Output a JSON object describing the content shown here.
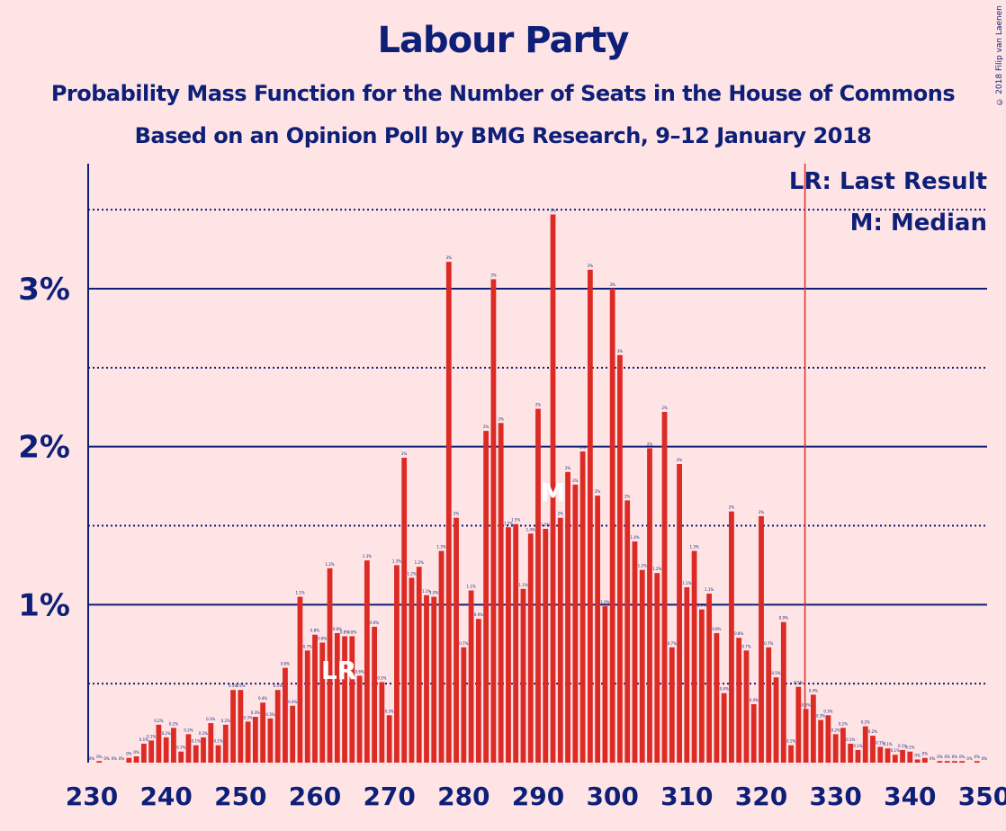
{
  "title": "Labour Party",
  "subtitle1": "Probability Mass Function for the Number of Seats in the House of Commons",
  "subtitle2": "Based on an Opinion Poll by BMG Research, 9–12 January 2018",
  "copyright": "© 2018 Filip van Laenen",
  "legend": {
    "lr": "LR: Last Result",
    "m": "M: Median"
  },
  "colors": {
    "bar": "#dc2b25",
    "axis": "#0e1f78",
    "background": "#ffe4e6",
    "last_result_line": "#dc2b25"
  },
  "chart_data": {
    "type": "bar",
    "xlabel": "",
    "ylabel": "",
    "xlim": [
      230,
      350
    ],
    "ylim": [
      0,
      3.8
    ],
    "x_ticks": [
      230,
      240,
      250,
      260,
      270,
      280,
      290,
      300,
      310,
      320,
      330,
      340,
      350
    ],
    "y_ticks": [
      {
        "value": 1,
        "label": "1%"
      },
      {
        "value": 2,
        "label": "2%"
      },
      {
        "value": 3,
        "label": "3%"
      }
    ],
    "dotted_lines": [
      0.5,
      1.5,
      2.5,
      3.5
    ],
    "last_result": {
      "seat": 262,
      "label": "LR"
    },
    "median": {
      "seat": 292,
      "label": "M"
    },
    "last_result_line": 326,
    "seats": [
      230,
      231,
      232,
      233,
      234,
      235,
      236,
      237,
      238,
      239,
      240,
      241,
      242,
      243,
      244,
      245,
      246,
      247,
      248,
      249,
      250,
      251,
      252,
      253,
      254,
      255,
      256,
      257,
      258,
      259,
      260,
      261,
      262,
      263,
      264,
      265,
      266,
      267,
      268,
      269,
      270,
      271,
      272,
      273,
      274,
      275,
      276,
      277,
      278,
      279,
      280,
      281,
      282,
      283,
      284,
      285,
      286,
      287,
      288,
      289,
      290,
      291,
      292,
      293,
      294,
      295,
      296,
      297,
      298,
      299,
      300,
      301,
      302,
      303,
      304,
      305,
      306,
      307,
      308,
      309,
      310,
      311,
      312,
      313,
      314,
      315,
      316,
      317,
      318,
      319,
      320,
      321,
      322,
      323,
      324,
      325,
      326,
      327,
      328,
      329,
      330,
      331,
      332,
      333,
      334,
      335,
      336,
      337,
      338,
      339,
      340,
      341,
      342,
      343,
      344,
      345,
      346,
      347,
      348,
      349,
      350
    ],
    "values": [
      0.0,
      0.01,
      0.0,
      0.0,
      0.0,
      0.03,
      0.04,
      0.12,
      0.14,
      0.24,
      0.16,
      0.22,
      0.07,
      0.18,
      0.11,
      0.16,
      0.25,
      0.11,
      0.24,
      0.46,
      0.46,
      0.26,
      0.29,
      0.38,
      0.28,
      0.46,
      0.6,
      0.36,
      1.05,
      0.71,
      0.81,
      0.76,
      1.23,
      0.82,
      0.8,
      0.8,
      0.55,
      1.28,
      0.86,
      0.51,
      0.3,
      1.25,
      1.93,
      1.17,
      1.24,
      1.06,
      1.05,
      1.34,
      3.17,
      1.55,
      0.73,
      1.09,
      0.91,
      2.1,
      3.06,
      2.15,
      1.49,
      1.51,
      1.1,
      1.45,
      2.24,
      1.48,
      3.47,
      1.55,
      1.84,
      1.76,
      1.97,
      3.12,
      1.69,
      0.99,
      3.0,
      2.58,
      1.66,
      1.4,
      1.22,
      1.99,
      1.2,
      2.22,
      0.73,
      1.89,
      1.11,
      1.34,
      0.97,
      1.07,
      0.82,
      0.44,
      1.59,
      0.79,
      0.71,
      0.37,
      1.56,
      0.73,
      0.54,
      0.89,
      0.11,
      0.48,
      0.34,
      0.43,
      0.27,
      0.3,
      0.18,
      0.22,
      0.12,
      0.08,
      0.23,
      0.17,
      0.1,
      0.09,
      0.05,
      0.08,
      0.07,
      0.02,
      0.03,
      0.0,
      0.01,
      0.01,
      0.01,
      0.01,
      0.0,
      0.01,
      0.0
    ],
    "labels": [
      "0%",
      "0%",
      "0%",
      "0%",
      "0%",
      "0%",
      "0%",
      "0.1%",
      "0.1%",
      "0.2%",
      "0.2%",
      "0.2%",
      "0.1%",
      "0.2%",
      "0.1%",
      "0.2%",
      "0.3%",
      "0.1%",
      "0.2%",
      "0.5%",
      "0.5%",
      "0.3%",
      "0.3%",
      "0.4%",
      "0.3%",
      "0.5%",
      "0.6%",
      "0.4%",
      "1.1%",
      "0.7%",
      "0.8%",
      "0.8%",
      "1.2%",
      "0.8%",
      "0.8%",
      "0.8%",
      "0.6%",
      "1.3%",
      "0.9%",
      "0.5%",
      "0.3%",
      "1.3%",
      "2%",
      "1.2%",
      "1.2%",
      "1.1%",
      "1.0%",
      "1.3%",
      "3%",
      "2%",
      "0.7%",
      "1.1%",
      "0.9%",
      "2%",
      "3%",
      "2%",
      "1.5%",
      "1.5%",
      "1.1%",
      "1.4%",
      "2%",
      "1.5%",
      "3%",
      "2%",
      "2%",
      "2%",
      "2%",
      "3%",
      "2%",
      "1.0%",
      "3%",
      "3%",
      "2%",
      "1.4%",
      "1.2%",
      "2%",
      "1.2%",
      "2%",
      "0.7%",
      "2%",
      "1.1%",
      "1.3%",
      "1.0%",
      "1.1%",
      "0.8%",
      "0.4%",
      "2%",
      "0.8%",
      "0.7%",
      "0.4%",
      "2%",
      "0.7%",
      "0.5%",
      "0.9%",
      "0.1%",
      "0.5%",
      "0.3%",
      "0.4%",
      "0.3%",
      "0.3%",
      "0.2%",
      "0.2%",
      "0.1%",
      "0.1%",
      "0.2%",
      "0.2%",
      "0.1%",
      "0.1%",
      "0.1%",
      "0.1%",
      "0.1%",
      "0%",
      "0%",
      "0%",
      "0%",
      "0%",
      "0%",
      "0%",
      "0%",
      "0%",
      "0%"
    ]
  }
}
